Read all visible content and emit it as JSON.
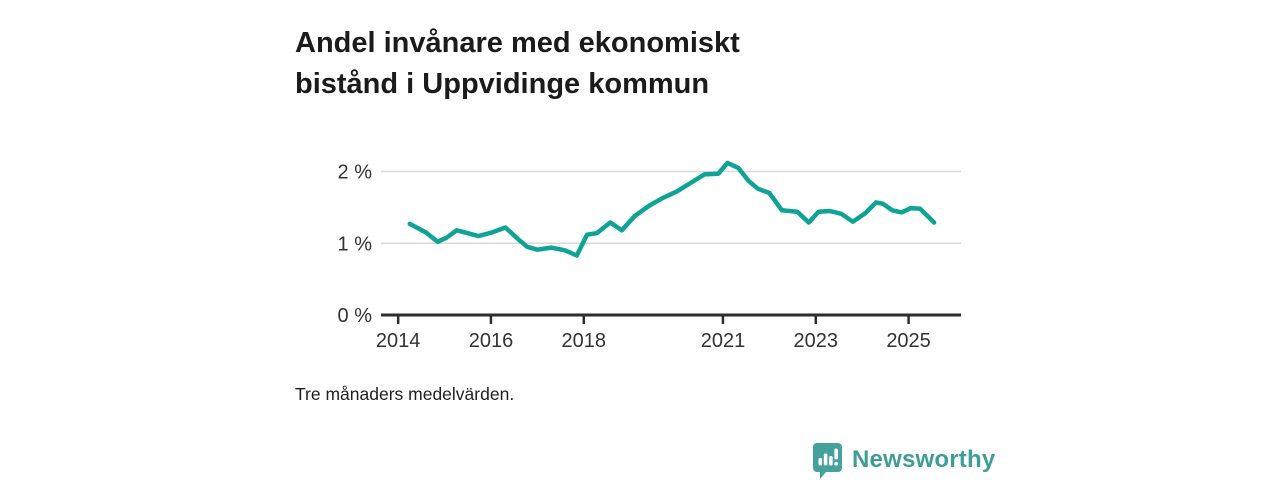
{
  "title": {
    "line1": "Andel invånare med ekonomiskt",
    "line2": "bistånd i Uppvidinge kommun",
    "full": "Andel invånare med ekonomiskt bistånd i Uppvidinge kommun"
  },
  "footnote": "Tre månaders medelvärden.",
  "brand": {
    "name": "Newsworthy",
    "icon": "bar-chart-speech-bubble-icon",
    "icon_color": "#45a19b",
    "text_color": "#3f9d98"
  },
  "chart_data": {
    "type": "line",
    "title": "Andel invånare med ekonomiskt bistånd i Uppvidinge kommun",
    "subtitle_note": "Tre månaders medelvärden.",
    "xlabel": "",
    "ylabel": "",
    "xlim": [
      2013.63,
      2026.13
    ],
    "ylim": [
      0,
      2.3
    ],
    "x_ticks": [
      2014,
      2016,
      2018,
      2021,
      2023,
      2025
    ],
    "x_tick_labels": [
      "2014",
      "2016",
      "2018",
      "2021",
      "2023",
      "2025"
    ],
    "y_ticks": [
      0,
      1,
      2
    ],
    "y_tick_labels": [
      "0 %",
      "1 %",
      "2 %"
    ],
    "grid_y": [
      1,
      2
    ],
    "grid_color": "#d9d9d9",
    "axis_color": "#2e2e2e",
    "tick_label_color": "#333333",
    "line_color": "#0fa396",
    "legend": "none",
    "series": [
      {
        "name": "Andel invånare med ekonomiskt bistånd (%)",
        "points": [
          [
            2014.25,
            1.27
          ],
          [
            2014.6,
            1.15
          ],
          [
            2014.85,
            1.02
          ],
          [
            2015.05,
            1.08
          ],
          [
            2015.26,
            1.18
          ],
          [
            2015.5,
            1.14
          ],
          [
            2015.73,
            1.1
          ],
          [
            2016.02,
            1.15
          ],
          [
            2016.31,
            1.22
          ],
          [
            2016.6,
            1.05
          ],
          [
            2016.78,
            0.95
          ],
          [
            2017.0,
            0.91
          ],
          [
            2017.3,
            0.94
          ],
          [
            2017.6,
            0.9
          ],
          [
            2017.85,
            0.83
          ],
          [
            2018.07,
            1.12
          ],
          [
            2018.28,
            1.14
          ],
          [
            2018.57,
            1.29
          ],
          [
            2018.82,
            1.18
          ],
          [
            2019.1,
            1.38
          ],
          [
            2019.4,
            1.52
          ],
          [
            2019.7,
            1.63
          ],
          [
            2020.0,
            1.72
          ],
          [
            2020.3,
            1.84
          ],
          [
            2020.6,
            1.96
          ],
          [
            2020.9,
            1.97
          ],
          [
            2021.1,
            2.12
          ],
          [
            2021.33,
            2.05
          ],
          [
            2021.55,
            1.87
          ],
          [
            2021.75,
            1.76
          ],
          [
            2022.0,
            1.7
          ],
          [
            2022.27,
            1.46
          ],
          [
            2022.6,
            1.44
          ],
          [
            2022.85,
            1.29
          ],
          [
            2023.06,
            1.44
          ],
          [
            2023.3,
            1.45
          ],
          [
            2023.55,
            1.41
          ],
          [
            2023.8,
            1.3
          ],
          [
            2024.07,
            1.42
          ],
          [
            2024.3,
            1.57
          ],
          [
            2024.45,
            1.55
          ],
          [
            2024.65,
            1.46
          ],
          [
            2024.85,
            1.43
          ],
          [
            2025.05,
            1.49
          ],
          [
            2025.25,
            1.48
          ],
          [
            2025.55,
            1.29
          ]
        ]
      }
    ]
  }
}
